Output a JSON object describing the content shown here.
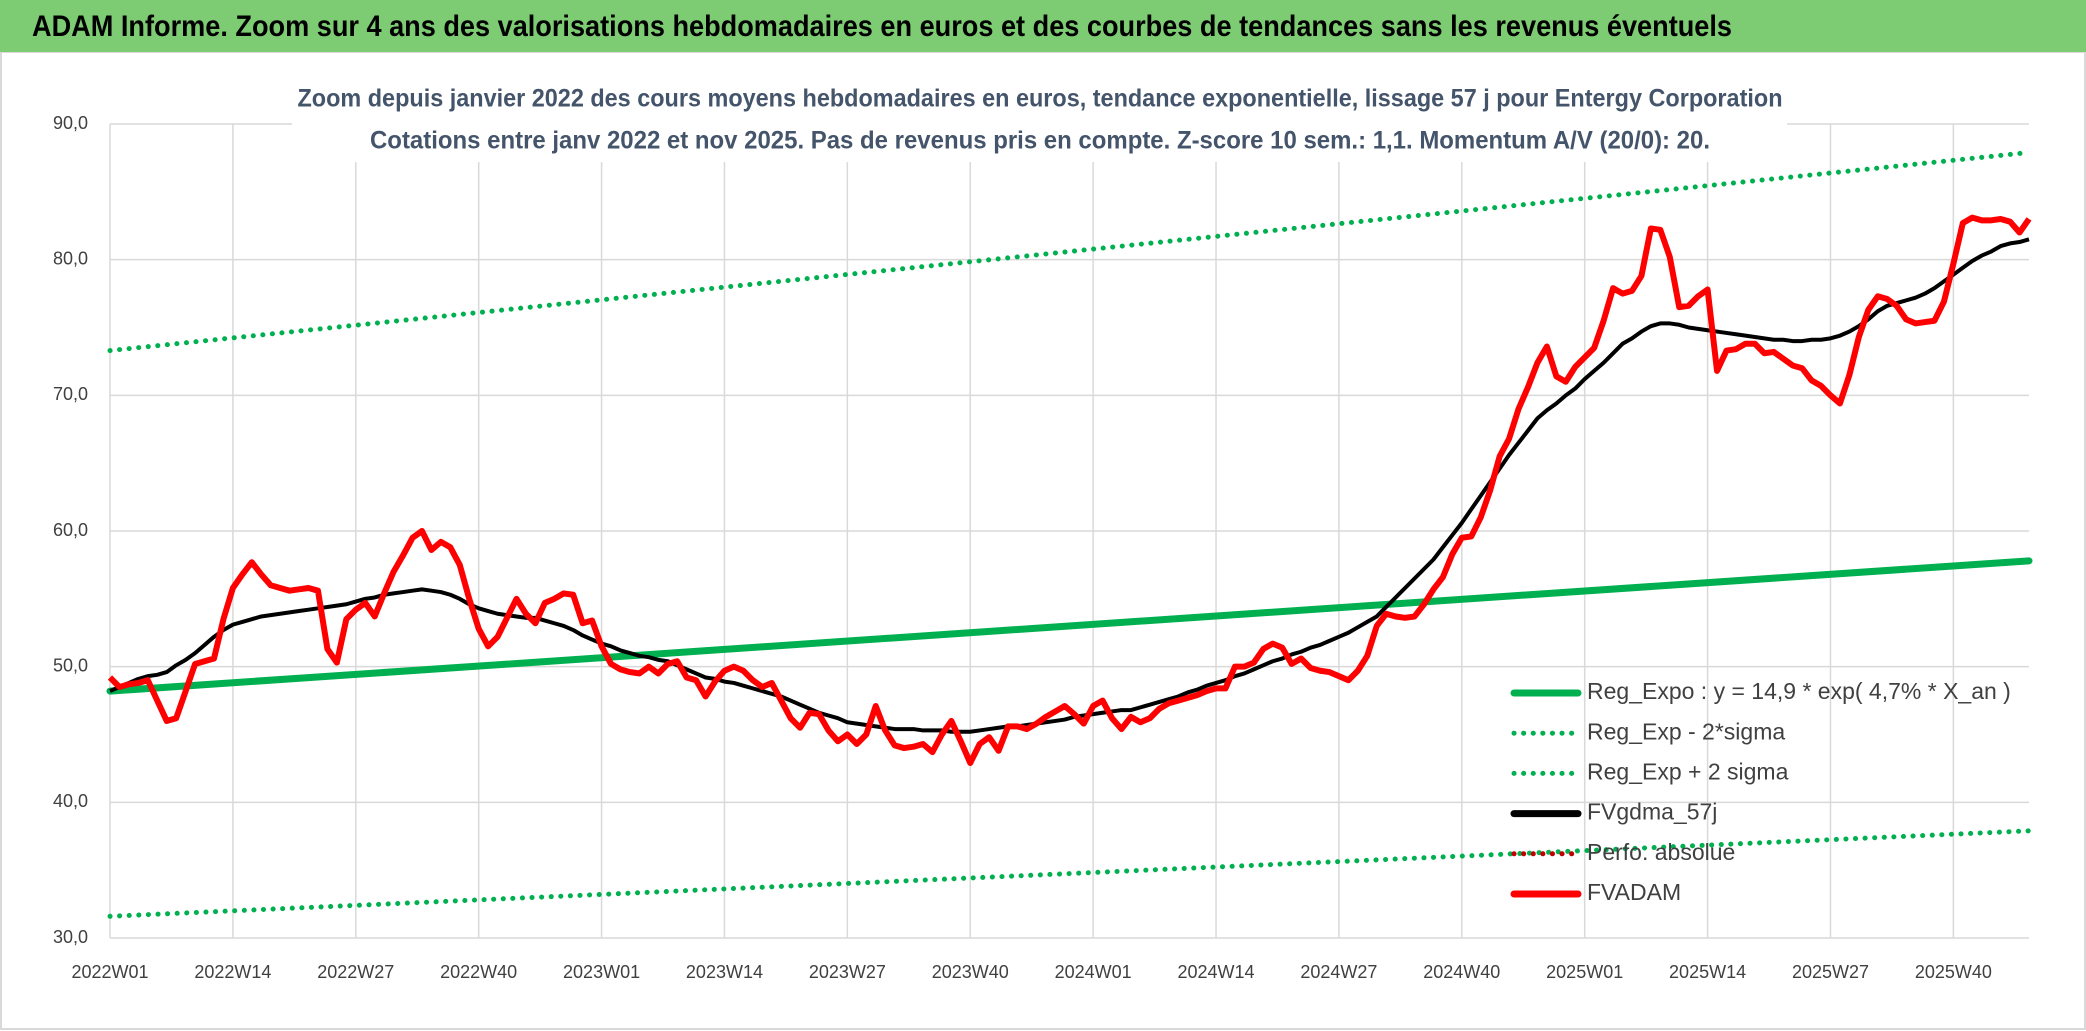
{
  "chart_data": {
    "type": "line",
    "title": "ADAM Informe. Zoom sur 4 ans des valorisations hebdomadaires en euros et des courbes de tendances sans les revenus éventuels",
    "subtitle": [
      "Zoom depuis janvier 2022 des cours moyens hebdomadaires en euros, tendance exponentielle, lissage 57 j pour Entergy Corporation",
      "Cotations entre janv 2022 et nov 2025. Pas de revenus pris en compte. Z-score 10 sem.: 1,1. Momentum A/V (20/0): 20."
    ],
    "categories": [
      "2022W01",
      null,
      null,
      null,
      null,
      null,
      null,
      null,
      null,
      null,
      null,
      null,
      null,
      "2022W14",
      null,
      null,
      null,
      null,
      null,
      null,
      null,
      null,
      null,
      null,
      null,
      null,
      "2022W27",
      null,
      null,
      null,
      null,
      null,
      null,
      null,
      null,
      null,
      null,
      null,
      null,
      "2022W40",
      null,
      null,
      null,
      null,
      null,
      null,
      null,
      null,
      null,
      null,
      null,
      null,
      "2023W01",
      null,
      null,
      null,
      null,
      null,
      null,
      null,
      null,
      null,
      null,
      null,
      null,
      "2023W14",
      null,
      null,
      null,
      null,
      null,
      null,
      null,
      null,
      null,
      null,
      null,
      null,
      "2023W27",
      null,
      null,
      null,
      null,
      null,
      null,
      null,
      null,
      null,
      null,
      null,
      null,
      "2023W40",
      null,
      null,
      null,
      null,
      null,
      null,
      null,
      null,
      null,
      null,
      null,
      null,
      "2024W01",
      null,
      null,
      null,
      null,
      null,
      null,
      null,
      null,
      null,
      null,
      null,
      null,
      "2024W14",
      null,
      null,
      null,
      null,
      null,
      null,
      null,
      null,
      null,
      null,
      null,
      null,
      "2024W27",
      null,
      null,
      null,
      null,
      null,
      null,
      null,
      null,
      null,
      null,
      null,
      null,
      "2024W40",
      null,
      null,
      null,
      null,
      null,
      null,
      null,
      null,
      null,
      null,
      null,
      null,
      "2025W01",
      null,
      null,
      null,
      null,
      null,
      null,
      null,
      null,
      null,
      null,
      null,
      null,
      "2025W14",
      null,
      null,
      null,
      null,
      null,
      null,
      null,
      null,
      null,
      null,
      null,
      null,
      "2025W27",
      null,
      null,
      null,
      null,
      null,
      null,
      null,
      null,
      null,
      null,
      null,
      null,
      "2025W40",
      null,
      null,
      null,
      null,
      null,
      null,
      null,
      null
    ],
    "series": [
      {
        "name": "FVgdma_57j",
        "color": "#000000",
        "values": [
          48.2,
          48.5,
          48.8,
          49.1,
          49.3,
          49.4,
          49.6,
          50.1,
          50.5,
          51.0,
          51.6,
          52.2,
          52.7,
          53.1,
          53.3,
          53.5,
          53.7,
          53.8,
          53.9,
          54.0,
          54.1,
          54.2,
          54.3,
          54.4,
          54.5,
          54.6,
          54.8,
          55.0,
          55.1,
          55.3,
          55.4,
          55.5,
          55.6,
          55.7,
          55.6,
          55.5,
          55.3,
          55.0,
          54.6,
          54.3,
          54.1,
          53.9,
          53.8,
          53.7,
          53.6,
          53.6,
          53.4,
          53.2,
          53.0,
          52.7,
          52.3,
          52.0,
          51.7,
          51.5,
          51.2,
          51.0,
          50.8,
          50.7,
          50.5,
          50.4,
          50.1,
          49.8,
          49.5,
          49.2,
          49.1,
          48.9,
          48.8,
          48.6,
          48.4,
          48.2,
          48.0,
          47.8,
          47.5,
          47.2,
          46.9,
          46.6,
          46.4,
          46.2,
          45.9,
          45.8,
          45.7,
          45.6,
          45.5,
          45.4,
          45.4,
          45.4,
          45.3,
          45.3,
          45.3,
          45.2,
          45.2,
          45.2,
          45.3,
          45.4,
          45.5,
          45.6,
          45.6,
          45.7,
          45.8,
          45.9,
          46.0,
          46.1,
          46.3,
          46.4,
          46.5,
          46.6,
          46.7,
          46.8,
          46.8,
          47.0,
          47.2,
          47.4,
          47.6,
          47.8,
          48.1,
          48.3,
          48.6,
          48.8,
          49.0,
          49.3,
          49.5,
          49.8,
          50.1,
          50.4,
          50.6,
          50.9,
          51.1,
          51.4,
          51.6,
          51.9,
          52.2,
          52.5,
          52.9,
          53.3,
          53.7,
          54.4,
          55.1,
          55.8,
          56.5,
          57.2,
          57.9,
          58.8,
          59.7,
          60.6,
          61.6,
          62.6,
          63.6,
          64.6,
          65.6,
          66.5,
          67.4,
          68.3,
          68.9,
          69.4,
          70.0,
          70.5,
          71.2,
          71.8,
          72.4,
          73.1,
          73.8,
          74.2,
          74.7,
          75.1,
          75.3,
          75.3,
          75.2,
          75.0,
          74.9,
          74.8,
          74.7,
          74.6,
          74.5,
          74.4,
          74.3,
          74.2,
          74.1,
          74.1,
          74.0,
          74.0,
          74.1,
          74.1,
          74.2,
          74.4,
          74.7,
          75.1,
          75.6,
          76.2,
          76.6,
          76.8,
          77.0,
          77.2,
          77.5,
          77.9,
          78.4,
          78.9,
          79.4,
          79.9,
          80.3,
          80.6,
          81.0,
          81.2,
          81.3,
          81.5
        ]
      },
      {
        "name": "FVADAM",
        "color": "#ff0000",
        "values": [
          49.2,
          48.5,
          48.7,
          48.8,
          49.0,
          47.5,
          46.0,
          46.2,
          48.2,
          50.2,
          50.4,
          50.6,
          53.5,
          55.8,
          56.8,
          57.7,
          56.8,
          56.0,
          55.8,
          55.6,
          55.7,
          55.8,
          55.6,
          51.3,
          50.3,
          53.5,
          54.2,
          54.7,
          53.7,
          55.4,
          57.0,
          58.2,
          59.5,
          60.0,
          58.6,
          59.2,
          58.8,
          57.5,
          55.0,
          52.8,
          51.5,
          52.2,
          53.6,
          55.0,
          53.9,
          53.2,
          54.7,
          55.0,
          55.4,
          55.3,
          53.2,
          53.4,
          51.5,
          50.2,
          49.8,
          49.6,
          49.5,
          50.0,
          49.5,
          50.2,
          50.4,
          49.2,
          49.0,
          47.8,
          48.9,
          49.7,
          50.0,
          49.7,
          49.0,
          48.5,
          48.8,
          47.5,
          46.2,
          45.5,
          46.6,
          46.5,
          45.3,
          44.5,
          45.0,
          44.3,
          45.0,
          47.1,
          45.3,
          44.2,
          44.0,
          44.1,
          44.3,
          43.7,
          45.0,
          46.0,
          44.5,
          42.9,
          44.3,
          44.8,
          43.8,
          45.6,
          45.6,
          45.4,
          45.8,
          46.3,
          46.7,
          47.1,
          46.5,
          45.8,
          47.1,
          47.5,
          46.2,
          45.4,
          46.3,
          45.9,
          46.2,
          46.9,
          47.3,
          47.5,
          47.7,
          47.9,
          48.2,
          48.4,
          48.4,
          50.0,
          50.0,
          50.3,
          51.3,
          51.7,
          51.4,
          50.2,
          50.6,
          49.9,
          49.7,
          49.6,
          49.3,
          49.0,
          49.7,
          50.8,
          53.0,
          53.9,
          53.7,
          53.6,
          53.7,
          54.6,
          55.7,
          56.6,
          58.3,
          59.5,
          59.6,
          61.0,
          63.0,
          65.5,
          66.8,
          69.0,
          70.6,
          72.4,
          73.6,
          71.4,
          71.0,
          72.1,
          72.8,
          73.5,
          75.5,
          77.9,
          77.5,
          77.7,
          78.8,
          82.3,
          82.2,
          80.2,
          76.5,
          76.6,
          77.3,
          77.8,
          71.8,
          73.3,
          73.4,
          73.8,
          73.8,
          73.1,
          73.2,
          72.7,
          72.2,
          72.0,
          71.1,
          70.7,
          70.0,
          69.4,
          71.5,
          74.3,
          76.3,
          77.3,
          77.1,
          76.6,
          75.6,
          75.3,
          75.4,
          75.5,
          76.9,
          79.7,
          82.7,
          83.1,
          82.9,
          82.9,
          83.0,
          82.8,
          82.0,
          83.0
        ]
      }
    ],
    "trend_lines": [
      {
        "name": "Reg_Expo : y = 14,9 * exp( 4,7% *  X_an )",
        "color": "#00b050",
        "dashed": false,
        "start": 48.2,
        "end": 57.8
      },
      {
        "name": "Reg_Exp - 2*sigma",
        "color": "#00b050",
        "dashed": true,
        "start": 31.6,
        "end": 37.9
      },
      {
        "name": "Reg_Exp + 2 sigma",
        "color": "#00b050",
        "dashed": true,
        "start": 73.3,
        "end": 87.9
      }
    ],
    "legend_only": [
      {
        "name": "Perfo. absolue",
        "color": "#c00000",
        "dashed": true
      }
    ],
    "ylim": [
      30,
      90
    ],
    "yticks": [
      {
        "value": 30,
        "label": "30,0"
      },
      {
        "value": 40,
        "label": "40,0"
      },
      {
        "value": 50,
        "label": "50,0"
      },
      {
        "value": 60,
        "label": "60,0"
      },
      {
        "value": 70,
        "label": "70,0"
      },
      {
        "value": 80,
        "label": "80,0"
      },
      {
        "value": 90,
        "label": "90,0"
      }
    ],
    "grid": true
  }
}
